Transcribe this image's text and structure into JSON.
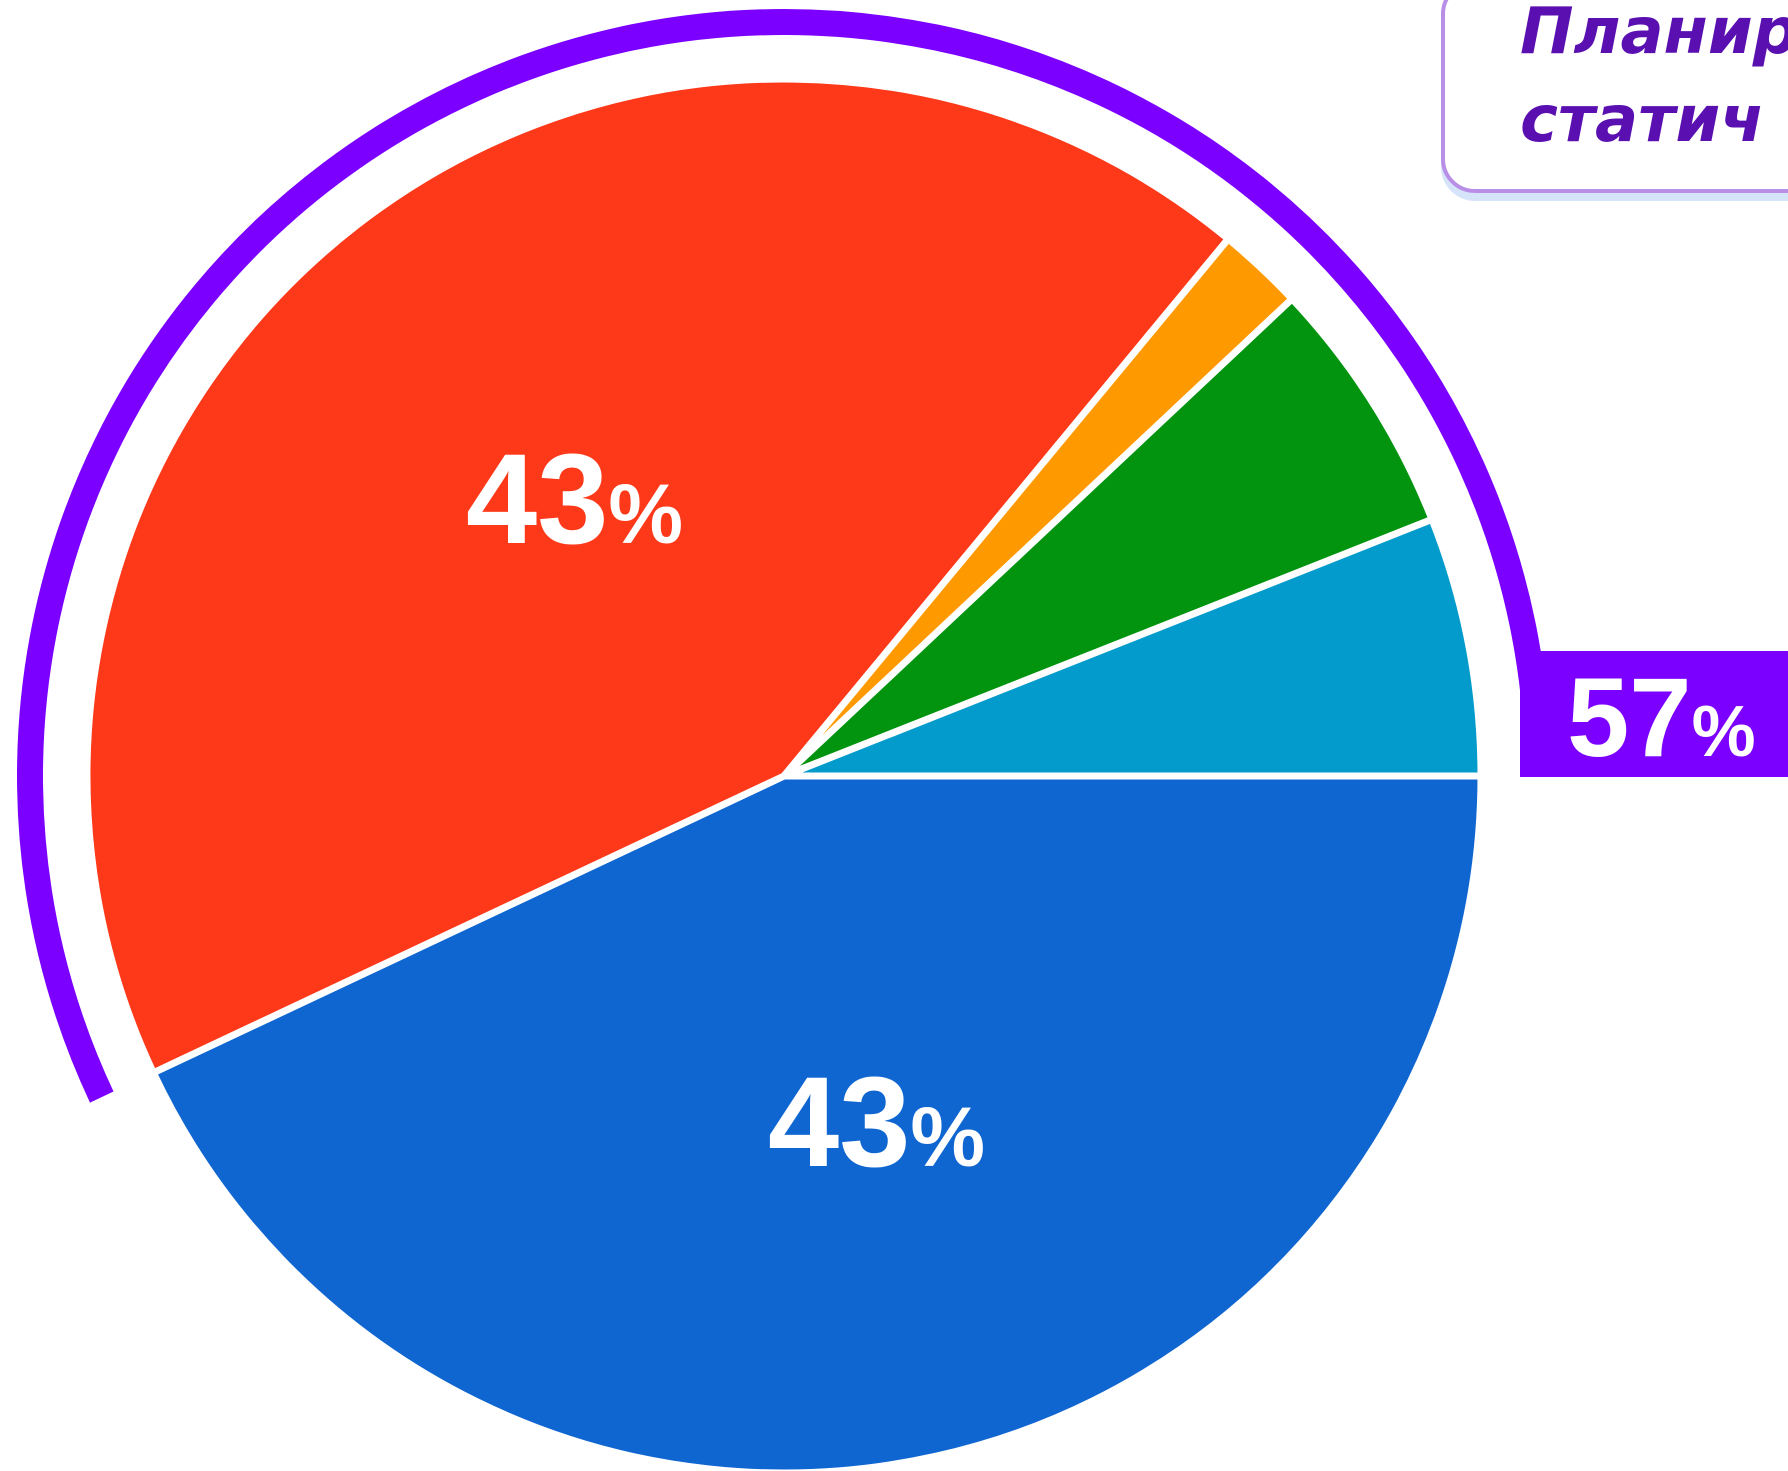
{
  "callout": {
    "line1": "Планиру",
    "line2": "статич"
  },
  "chart_data": {
    "type": "pie",
    "slices": [
      {
        "label": "blue segment",
        "value": 43,
        "color": "#1066d1"
      },
      {
        "label": "red segment",
        "value": 43,
        "color": "#fd391a"
      },
      {
        "label": "orange segment",
        "value": 2,
        "color": "#ff9900"
      },
      {
        "label": "green segment",
        "value": 6,
        "color": "#02940f"
      },
      {
        "label": "teal segment",
        "value": 6,
        "color": "#039bcc"
      }
    ],
    "data_labels": [
      {
        "num": "43",
        "pct": "%"
      },
      {
        "num": "43",
        "pct": "%"
      }
    ],
    "group_arc": {
      "value": 57,
      "num": "57",
      "pct": "%",
      "color": "#7b00ff"
    }
  }
}
